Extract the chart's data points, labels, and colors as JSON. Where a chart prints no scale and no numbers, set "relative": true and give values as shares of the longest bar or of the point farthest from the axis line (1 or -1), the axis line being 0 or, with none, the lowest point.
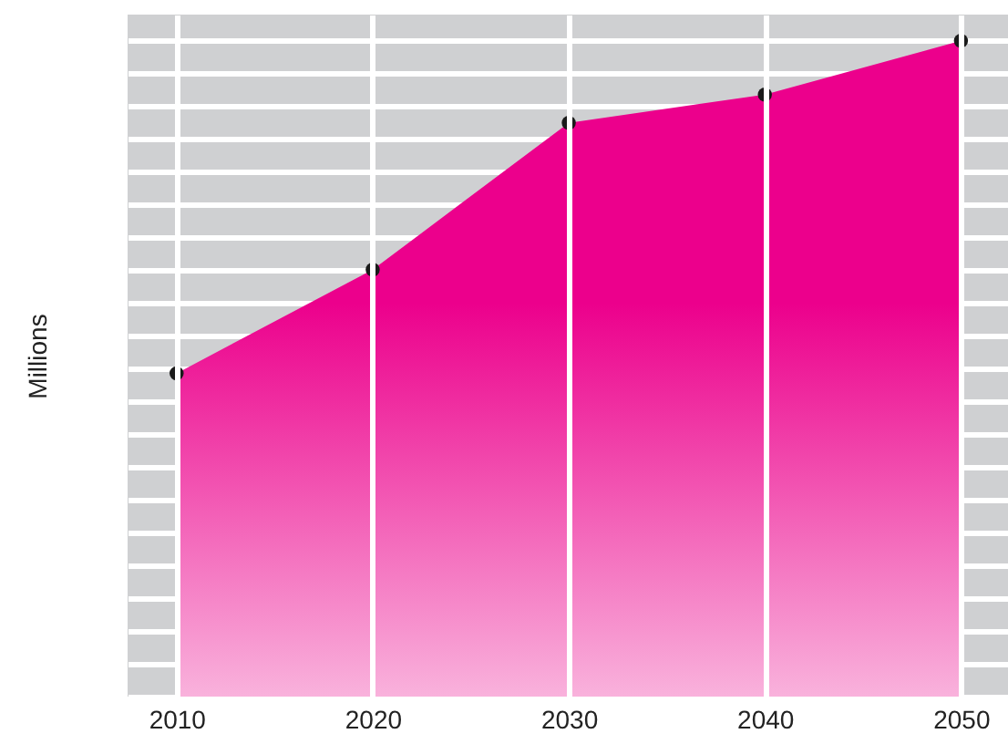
{
  "chart_data": {
    "type": "area",
    "ylabel": "Millions",
    "relative": true,
    "x": [
      2010,
      2020,
      2030,
      2040,
      2050
    ],
    "xlim": [
      2007.5,
      2052.4
    ],
    "xticks": [
      2010,
      2020,
      2030,
      2040,
      2050
    ],
    "series": [
      {
        "color": "#ec008c",
        "values": [
          0.493,
          0.651,
          0.875,
          0.918,
          1.0
        ]
      }
    ],
    "marker": "circle",
    "grid": true
  }
}
